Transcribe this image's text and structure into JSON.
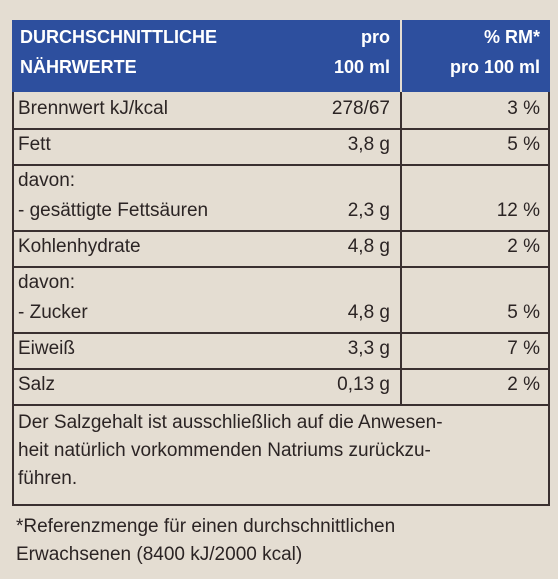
{
  "header": {
    "nutrient": [
      "DURCHSCHNITTLICHE",
      "NÄHRWERTE"
    ],
    "per": [
      "pro",
      "100 ml"
    ],
    "rm": [
      "% RM*",
      "pro 100 ml"
    ]
  },
  "table": {
    "rows": [
      {
        "label": [
          "Brennwert kJ/kcal"
        ],
        "value": "278/67",
        "rm": "3 %"
      },
      {
        "label": [
          "Fett"
        ],
        "value": "3,8 g",
        "rm": "5 %"
      },
      {
        "label": [
          "davon:",
          "- gesättigte Fettsäuren"
        ],
        "value": "2,3 g",
        "rm": "12 %"
      },
      {
        "label": [
          "Kohlenhydrate"
        ],
        "value": "4,8 g",
        "rm": "2 %"
      },
      {
        "label": [
          "davon:",
          "- Zucker"
        ],
        "value": "4,8 g",
        "rm": "5 %"
      },
      {
        "label": [
          "Eiweiß"
        ],
        "value": "3,3 g",
        "rm": "7 %"
      },
      {
        "label": [
          "Salz"
        ],
        "value": "0,13 g",
        "rm": "2 %"
      }
    ]
  },
  "note": [
    "Der Salzgehalt ist ausschließlich auf die Anwesen-",
    "heit natürlich vorkommenden Natriums zurückzu-",
    "führen."
  ],
  "footnote": [
    "*Referenzmenge für einen durchschnittlichen",
    "Erwachsenen (8400 kJ/2000 kcal)"
  ]
}
